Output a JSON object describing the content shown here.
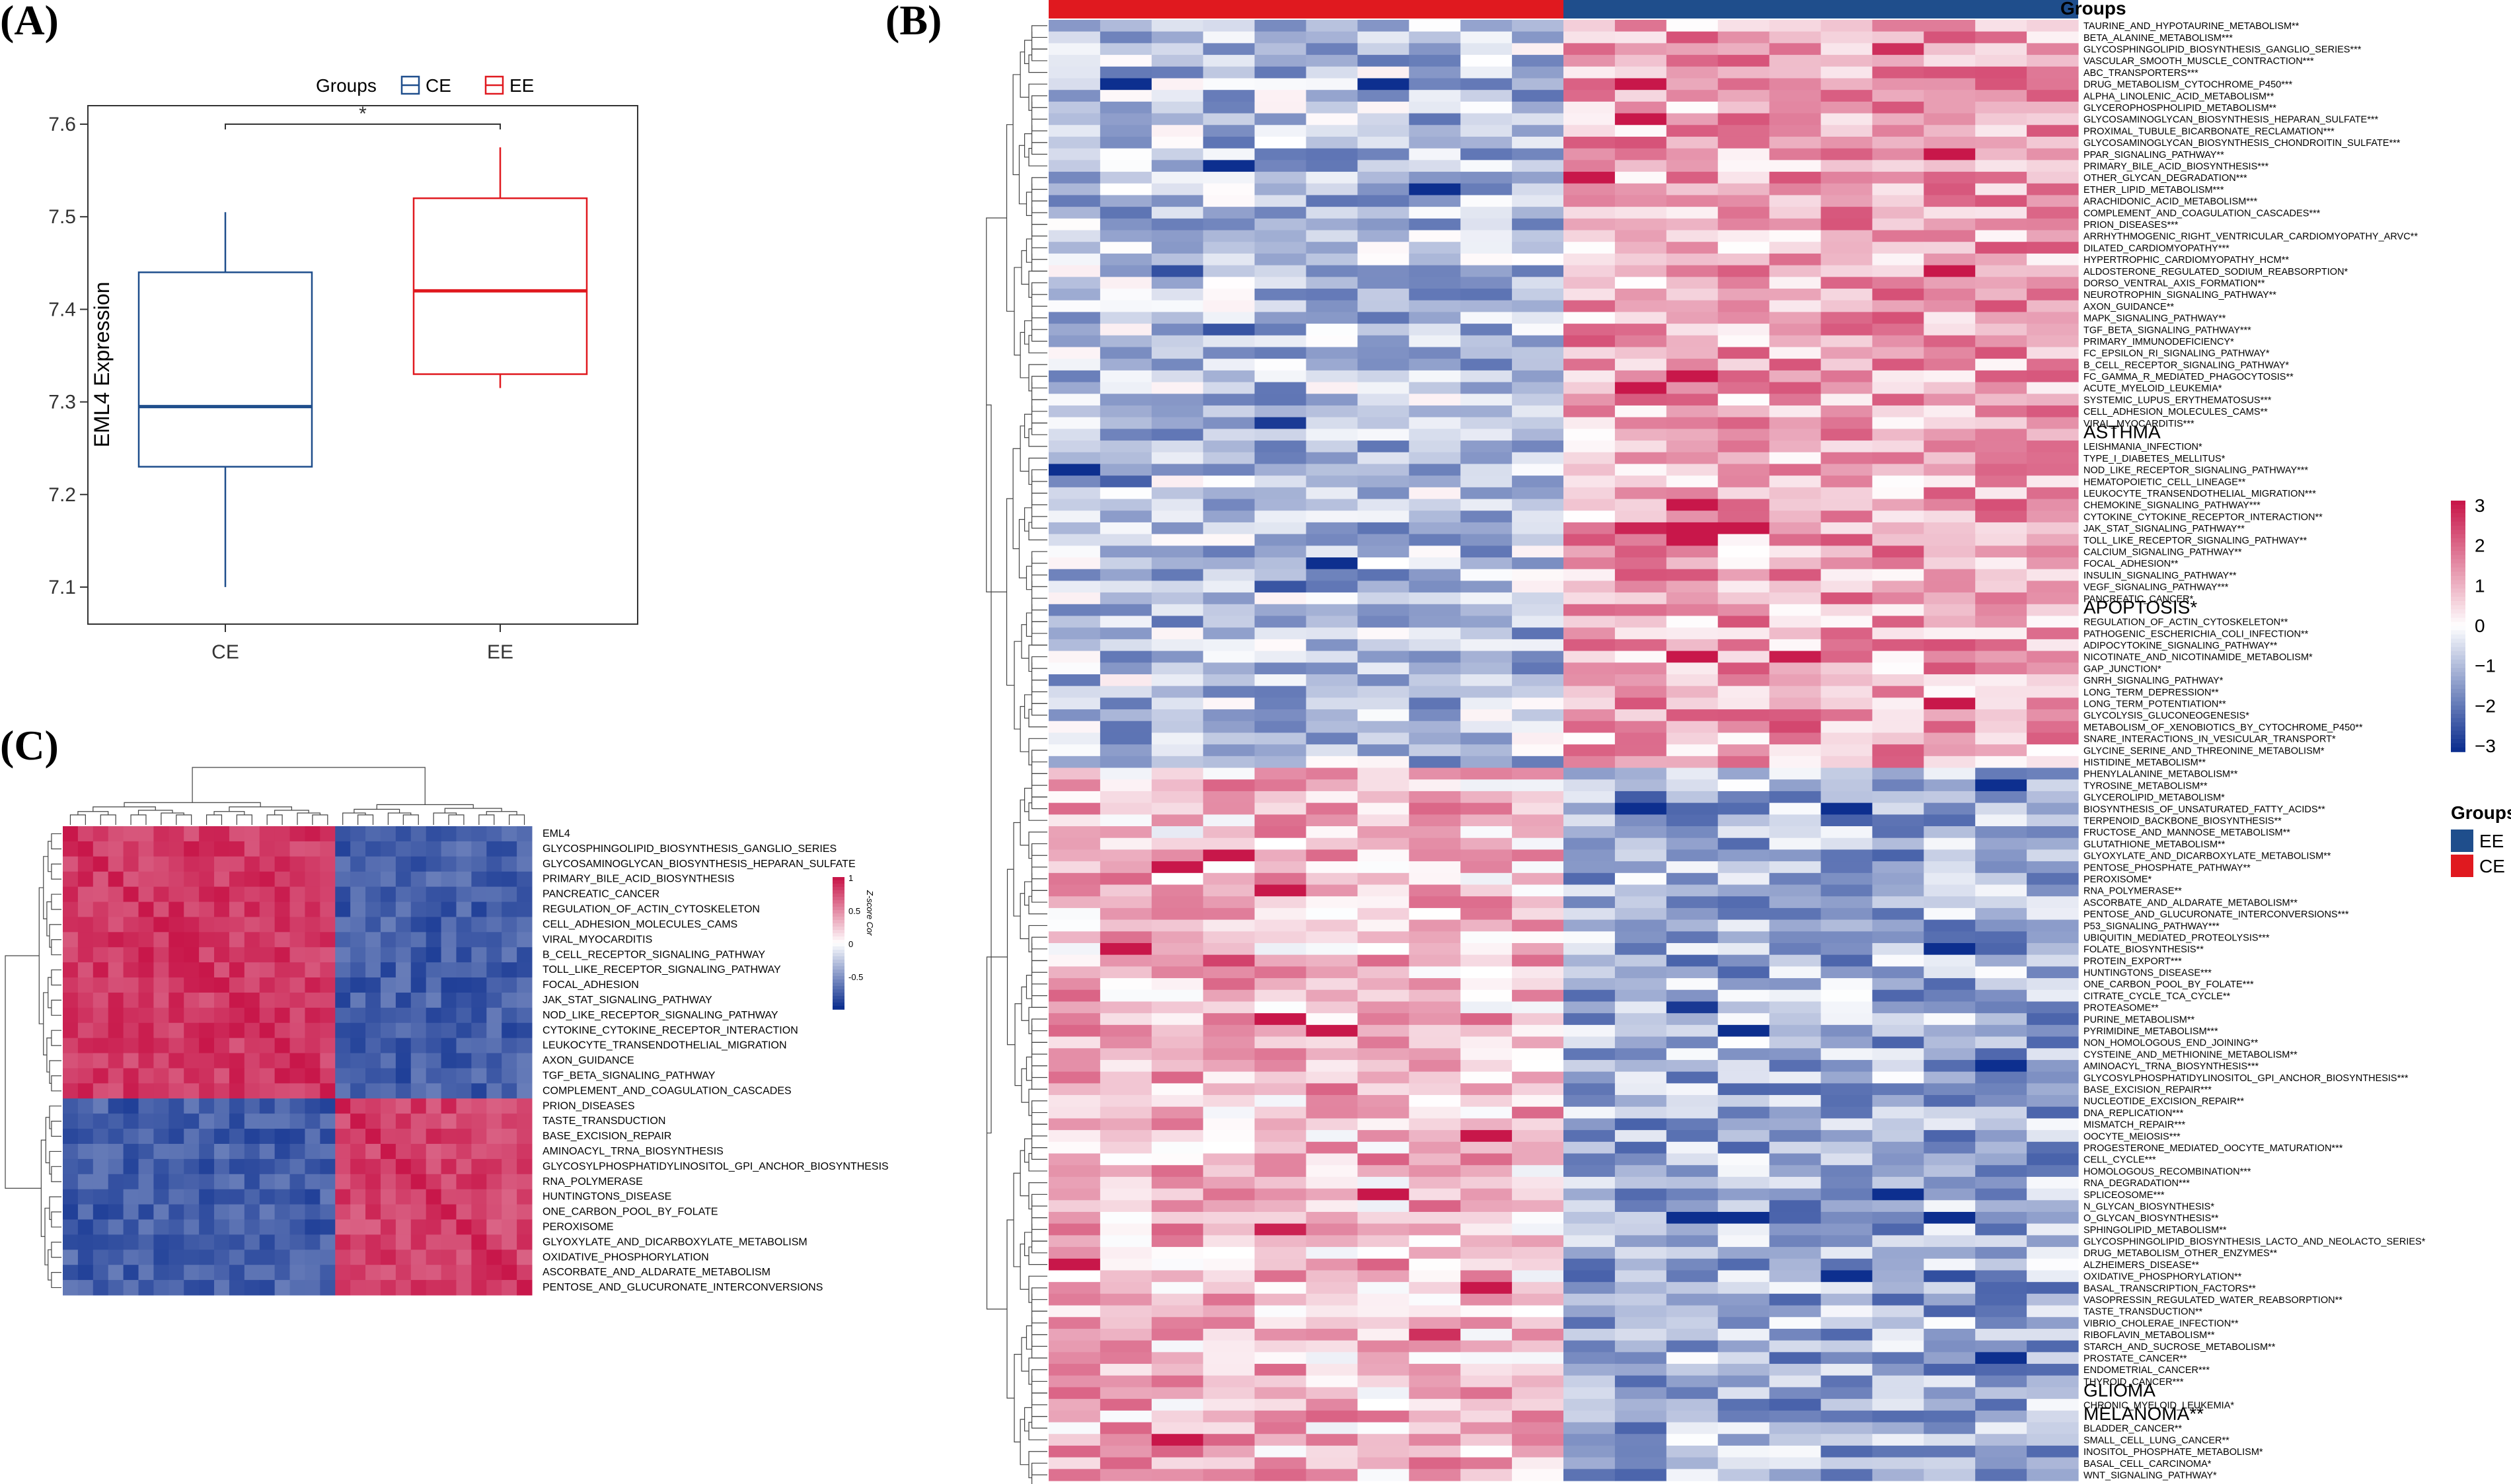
{
  "panels": {
    "A": "(A)",
    "B": "(B)",
    "C": "(C)"
  },
  "colors": {
    "ce": "#e0191f",
    "ee": "#1f4e8c",
    "high": "#c8174a",
    "mid": "#ffffff",
    "low": "#0d2f8f"
  },
  "chart_data": [
    {
      "type": "box",
      "panel": "A",
      "legend_title": "Groups",
      "legend": [
        "CE",
        "EE"
      ],
      "xlabel": "",
      "ylabel": "EML4 Expression",
      "categories": [
        "CE",
        "EE"
      ],
      "ylim": [
        7.06,
        7.62
      ],
      "yticks": [
        "7.1",
        "7.2",
        "7.3",
        "7.4",
        "7.5",
        "7.6"
      ],
      "boxes": [
        {
          "name": "CE",
          "min": 7.1,
          "q1": 7.23,
          "median": 7.295,
          "q3": 7.44,
          "max": 7.505,
          "color": "#1f4e8c"
        },
        {
          "name": "EE",
          "min": 7.315,
          "q1": 7.33,
          "median": 7.42,
          "q3": 7.52,
          "max": 7.575,
          "color": "#e0191f"
        }
      ],
      "significance": "*"
    },
    {
      "type": "heatmap",
      "panel": "B",
      "legend_title": "Groups",
      "legend": [
        "EE",
        "CE"
      ],
      "colorbar_ticks": [
        "3",
        "2",
        "1",
        "0",
        "−1",
        "−2",
        "−3"
      ],
      "columns_ce": 10,
      "columns_ee": 10,
      "upper_block_rows": 64,
      "rows": [
        "TAURINE_AND_HYPOTAURINE_METABOLISM**",
        "BETA_ALANINE_METABOLISM***",
        "GLYCOSPHINGOLIPID_BIOSYNTHESIS_GANGLIO_SERIES***",
        "VASCULAR_SMOOTH_MUSCLE_CONTRACTION***",
        "ABC_TRANSPORTERS***",
        "DRUG_METABOLISM_CYTOCHROME_P450***",
        "ALPHA_LINOLENIC_ACID_METABOLISM**",
        "GLYCEROPHOSPHOLIPID_METABOLISM**",
        "GLYCOSAMINOGLYCAN_BIOSYNTHESIS_HEPARAN_SULFATE***",
        "PROXIMAL_TUBULE_BICARBONATE_RECLAMATION***",
        "GLYCOSAMINOGLYCAN_BIOSYNTHESIS_CHONDROITIN_SULFATE***",
        "PPAR_SIGNALING_PATHWAY**",
        "PRIMARY_BILE_ACID_BIOSYNTHESIS***",
        "OTHER_GLYCAN_DEGRADATION***",
        "ETHER_LIPID_METABOLISM***",
        "ARACHIDONIC_ACID_METABOLISM***",
        "COMPLEMENT_AND_COAGULATION_CASCADES***",
        "PRION_DISEASES***",
        "ARRHYTHMOGENIC_RIGHT_VENTRICULAR_CARDIOMYOPATHY_ARVC**",
        "DILATED_CARDIOMYOPATHY***",
        "HYPERTROPHIC_CARDIOMYOPATHY_HCM**",
        "ALDOSTERONE_REGULATED_SODIUM_REABSORPTION*",
        "DORSO_VENTRAL_AXIS_FORMATION**",
        "NEUROTROPHIN_SIGNALING_PATHWAY**",
        "AXON_GUIDANCE**",
        "MAPK_SIGNALING_PATHWAY**",
        "TGF_BETA_SIGNALING_PATHWAY***",
        "PRIMARY_IMMUNODEFICIENCY*",
        "FC_EPSILON_RI_SIGNALING_PATHWAY*",
        "B_CELL_RECEPTOR_SIGNALING_PATHWAY*",
        "FC_GAMMA_R_MEDIATED_PHAGOCYTOSIS**",
        "ACUTE_MYELOID_LEUKEMIA*",
        "SYSTEMIC_LUPUS_ERYTHEMATOSUS***",
        "CELL_ADHESION_MOLECULES_CAMS**",
        "VIRAL_MYOCARDITIS***",
        "ASTHMA",
        "LEISHMANIA_INFECTION*",
        "TYPE_I_DIABETES_MELLITUS*",
        "NOD_LIKE_RECEPTOR_SIGNALING_PATHWAY***",
        "HEMATOPOIETIC_CELL_LINEAGE**",
        "LEUKOCYTE_TRANSENDOTHELIAL_MIGRATION***",
        "CHEMOKINE_SIGNALING_PATHWAY***",
        "CYTOKINE_CYTOKINE_RECEPTOR_INTERACTION**",
        "JAK_STAT_SIGNALING_PATHWAY**",
        "TOLL_LIKE_RECEPTOR_SIGNALING_PATHWAY**",
        "CALCIUM_SIGNALING_PATHWAY**",
        "FOCAL_ADHESION**",
        "INSULIN_SIGNALING_PATHWAY**",
        "VEGF_SIGNALING_PATHWAY***",
        "PANCREATIC_CANCER*",
        "APOPTOSIS*",
        "REGULATION_OF_ACTIN_CYTOSKELETON**",
        "PATHOGENIC_ESCHERICHIA_COLI_INFECTION**",
        "ADIPOCYTOKINE_SIGNALING_PATHWAY**",
        "NICOTINATE_AND_NICOTINAMIDE_METABOLISM*",
        "GAP_JUNCTION*",
        "GNRH_SIGNALING_PATHWAY*",
        "LONG_TERM_DEPRESSION**",
        "LONG_TERM_POTENTIATION**",
        "GLYCOLYSIS_GLUCONEOGENESIS*",
        "METABOLISM_OF_XENOBIOTICS_BY_CYTOCHROME_P450**",
        "SNARE_INTERACTIONS_IN_VESICULAR_TRANSPORT*",
        "GLYCINE_SERINE_AND_THREONINE_METABOLISM*",
        "HISTIDINE_METABOLISM**",
        "PHENYLALANINE_METABOLISM**",
        "TYROSINE_METABOLISM**",
        "GLYCEROLIPID_METABOLISM*",
        "BIOSYNTHESIS_OF_UNSATURATED_FATTY_ACIDS**",
        "TERPENOID_BACKBONE_BIOSYNTHESIS**",
        "FRUCTOSE_AND_MANNOSE_METABOLISM**",
        "GLUTATHIONE_METABOLISM**",
        "GLYOXYLATE_AND_DICARBOXYLATE_METABOLISM**",
        "PENTOSE_PHOSPHATE_PATHWAY**",
        "PEROXISOME*",
        "RNA_POLYMERASE**",
        "ASCORBATE_AND_ALDARATE_METABOLISM**",
        "PENTOSE_AND_GLUCURONATE_INTERCONVERSIONS***",
        "P53_SIGNALING_PATHWAY***",
        "UBIQUITIN_MEDIATED_PROTEOLYSIS***",
        "FOLATE_BIOSYNTHESIS**",
        "PROTEIN_EXPORT***",
        "HUNTINGTONS_DISEASE***",
        "ONE_CARBON_POOL_BY_FOLATE***",
        "CITRATE_CYCLE_TCA_CYCLE**",
        "PROTEASOME**",
        "PURINE_METABOLISM**",
        "PYRIMIDINE_METABOLISM***",
        "NON_HOMOLOGOUS_END_JOINING**",
        "CYSTEINE_AND_METHIONINE_METABOLISM**",
        "AMINOACYL_TRNA_BIOSYNTHESIS***",
        "GLYCOSYLPHOSPHATIDYLINOSITOL_GPI_ANCHOR_BIOSYNTHESIS***",
        "BASE_EXCISION_REPAIR***",
        "NUCLEOTIDE_EXCISION_REPAIR**",
        "DNA_REPLICATION***",
        "MISMATCH_REPAIR***",
        "OOCYTE_MEIOSIS***",
        "PROGESTERONE_MEDIATED_OOCYTE_MATURATION***",
        "CELL_CYCLE***",
        "HOMOLOGOUS_RECOMBINATION***",
        "RNA_DEGRADATION***",
        "SPLICEOSOME***",
        "N_GLYCAN_BIOSYNTHESIS*",
        "O_GLYCAN_BIOSYNTHESIS**",
        "SPHINGOLIPID_METABOLISM**",
        "GLYCOSPHINGOLIPID_BIOSYNTHESIS_LACTO_AND_NEOLACTO_SERIES*",
        "DRUG_METABOLISM_OTHER_ENZYMES**",
        "ALZHEIMERS_DISEASE**",
        "OXIDATIVE_PHOSPHORYLATION**",
        "BASAL_TRANSCRIPTION_FACTORS**",
        "VASOPRESSIN_REGULATED_WATER_REABSORPTION**",
        "TASTE_TRANSDUCTION**",
        "VIBRIO_CHOLERAE_INFECTION**",
        "RIBOFLAVIN_METABOLISM**",
        "STARCH_AND_SUCROSE_METABOLISM**",
        "PROSTATE_CANCER**",
        "ENDOMETRIAL_CANCER***",
        "THYROID_CANCER***",
        "GLIOMA",
        "CHRONIC_MYELOID_LEUKEMIA*",
        "MELANOMA**",
        "BLADDER_CANCER**",
        "SMALL_CELL_LUNG_CANCER**",
        "INOSITOL_PHOSPHATE_METABOLISM*",
        "BASAL_CELL_CARCINOMA*",
        "WNT_SIGNALING_PATHWAY*"
      ]
    },
    {
      "type": "heatmap",
      "panel": "C",
      "colorbar_title": "Z-score Cor",
      "colorbar_ticks": [
        "1",
        "0.5",
        "0",
        "-0.5"
      ],
      "group1_size": 18,
      "rows": [
        "EML4",
        "GLYCOSPHINGOLIPID_BIOSYNTHESIS_GANGLIO_SERIES",
        "GLYCOSAMINOGLYCAN_BIOSYNTHESIS_HEPARAN_SULFATE",
        "PRIMARY_BILE_ACID_BIOSYNTHESIS",
        "PANCREATIC_CANCER",
        "REGULATION_OF_ACTIN_CYTOSKELETON",
        "CELL_ADHESION_MOLECULES_CAMS",
        "VIRAL_MYOCARDITIS",
        "B_CELL_RECEPTOR_SIGNALING_PATHWAY",
        "TOLL_LIKE_RECEPTOR_SIGNALING_PATHWAY",
        "FOCAL_ADHESION",
        "JAK_STAT_SIGNALING_PATHWAY",
        "NOD_LIKE_RECEPTOR_SIGNALING_PATHWAY",
        "CYTOKINE_CYTOKINE_RECEPTOR_INTERACTION",
        "LEUKOCYTE_TRANSENDOTHELIAL_MIGRATION",
        "AXON_GUIDANCE",
        "TGF_BETA_SIGNALING_PATHWAY",
        "COMPLEMENT_AND_COAGULATION_CASCADES",
        "PRION_DISEASES",
        "TASTE_TRANSDUCTION",
        "BASE_EXCISION_REPAIR",
        "AMINOACYL_TRNA_BIOSYNTHESIS",
        "GLYCOSYLPHOSPHATIDYLINOSITOL_GPI_ANCHOR_BIOSYNTHESIS",
        "RNA_POLYMERASE",
        "HUNTINGTONS_DISEASE",
        "ONE_CARBON_POOL_BY_FOLATE",
        "PEROXISOME",
        "GLYOXYLATE_AND_DICARBOXYLATE_METABOLISM",
        "OXIDATIVE_PHOSPHORYLATION",
        "ASCORBATE_AND_ALDARATE_METABOLISM",
        "PENTOSE_AND_GLUCURONATE_INTERCONVERSIONS"
      ]
    }
  ]
}
